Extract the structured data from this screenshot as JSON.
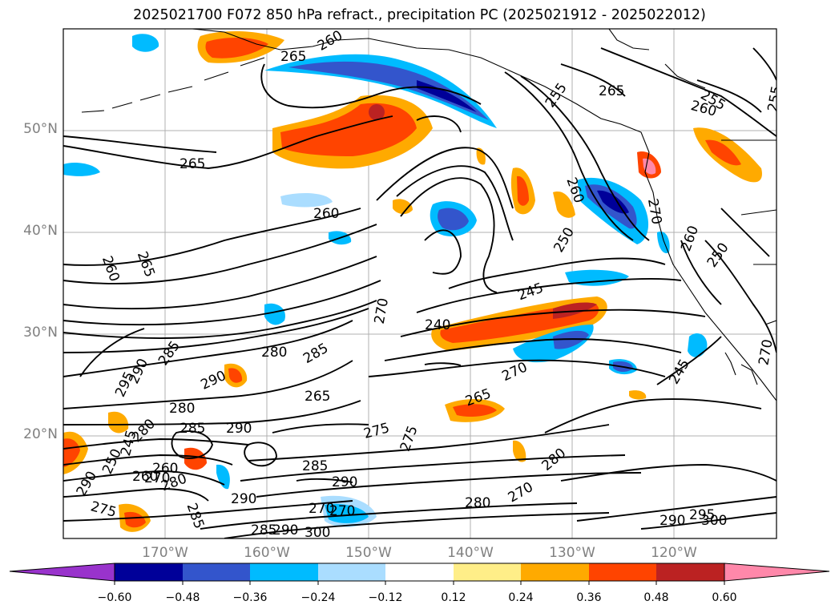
{
  "title": "2025021700 F072 850 hPa refract., precipitation PC (2025021912 - 2025022012)",
  "lat_labels": [
    "50°N",
    "40°N",
    "30°N",
    "20°N"
  ],
  "lon_labels": [
    "170°W",
    "160°W",
    "150°W",
    "140°W",
    "130°W",
    "120°W"
  ],
  "colorbar": {
    "ticks": [
      "−0.60",
      "−0.48",
      "−0.36",
      "−0.24",
      "−0.12",
      "0.12",
      "0.24",
      "0.36",
      "0.48",
      "0.60"
    ],
    "colors": [
      "#9933cc",
      "#000099",
      "#3355cc",
      "#00bbff",
      "#aaddff",
      "#ffffff",
      "#ffee88",
      "#ffaa00",
      "#ff4400",
      "#bb2222",
      "#ff88aa"
    ]
  },
  "contour_labels": [
    "255",
    "265",
    "255",
    "260",
    "265",
    "260",
    "265",
    "260",
    "265",
    "240",
    "245",
    "250",
    "255",
    "260",
    "270",
    "250",
    "245",
    "270",
    "285",
    "290",
    "280",
    "295",
    "290",
    "285",
    "280",
    "285",
    "290",
    "265",
    "270",
    "275",
    "275",
    "280",
    "270",
    "285",
    "290",
    "260",
    "270",
    "280",
    "275",
    "290",
    "270",
    "285",
    "290",
    "280",
    "290",
    "295",
    "300",
    "285",
    "290",
    "300",
    "260",
    "245",
    "260",
    "250",
    "270",
    "280",
    "265",
    "270",
    "260"
  ]
}
